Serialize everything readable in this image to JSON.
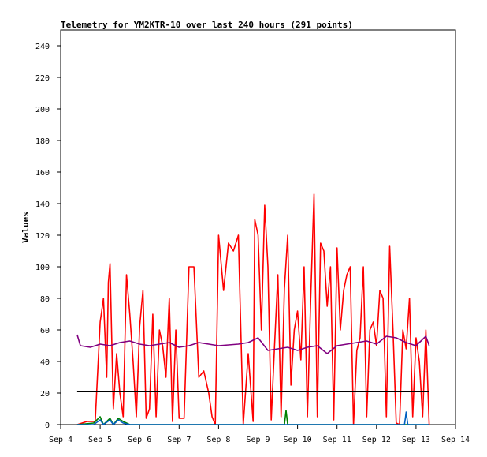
{
  "chart_data": {
    "type": "line",
    "title": "Telemetry for YM2KTR-10 over last 240 hours (291 points)",
    "xlabel": "",
    "ylabel": "Values",
    "ylim": [
      0,
      250
    ],
    "yticks": [
      0,
      20,
      40,
      60,
      80,
      100,
      120,
      140,
      160,
      180,
      200,
      220,
      240
    ],
    "xlim": [
      "Sep 4",
      "Sep 14"
    ],
    "xticks": [
      "Sep 4",
      "Sep 5",
      "Sep 6",
      "Sep 7",
      "Sep 8",
      "Sep 9",
      "Sep 10",
      "Sep 11",
      "Sep 12",
      "Sep 13",
      "Sep 14"
    ],
    "grid": false,
    "legend": "none",
    "series": [
      {
        "color": "#ff0000",
        "x": [
          "Sep 4 10:00",
          "Sep 4 16:00",
          "Sep 4 21:00",
          "Sep 5 00:00",
          "Sep 5 02:00",
          "Sep 5 04:00",
          "Sep 5 05:00",
          "Sep 5 06:00",
          "Sep 5 08:00",
          "Sep 5 10:00",
          "Sep 5 12:00",
          "Sep 5 14:00",
          "Sep 5 16:00",
          "Sep 5 18:00",
          "Sep 5 20:00",
          "Sep 5 22:00",
          "Sep 6 00:00",
          "Sep 6 02:00",
          "Sep 6 04:00",
          "Sep 6 06:00",
          "Sep 6 08:00",
          "Sep 6 10:00",
          "Sep 6 12:00",
          "Sep 6 14:00",
          "Sep 6 16:00",
          "Sep 6 18:00",
          "Sep 6 20:00",
          "Sep 6 22:00",
          "Sep 7 00:00",
          "Sep 7 03:00",
          "Sep 7 06:00",
          "Sep 7 09:00",
          "Sep 7 12:00",
          "Sep 7 15:00",
          "Sep 7 18:00",
          "Sep 7 20:00",
          "Sep 7 22:00",
          "Sep 8 00:00",
          "Sep 8 03:00",
          "Sep 8 06:00",
          "Sep 8 09:00",
          "Sep 8 12:00",
          "Sep 8 15:00",
          "Sep 8 18:00",
          "Sep 8 21:00",
          "Sep 8 22:00",
          "Sep 9 00:00",
          "Sep 9 02:00",
          "Sep 9 04:00",
          "Sep 9 06:00",
          "Sep 9 08:00",
          "Sep 9 10:00",
          "Sep 9 12:00",
          "Sep 9 14:00",
          "Sep 9 16:00",
          "Sep 9 18:00",
          "Sep 9 20:00",
          "Sep 9 22:00",
          "Sep 10 00:00",
          "Sep 10 02:00",
          "Sep 10 04:00",
          "Sep 10 06:00",
          "Sep 10 08:00",
          "Sep 10 10:00",
          "Sep 10 12:00",
          "Sep 10 14:00",
          "Sep 10 16:00",
          "Sep 10 18:00",
          "Sep 10 20:00",
          "Sep 10 22:00",
          "Sep 11 00:00",
          "Sep 11 02:00",
          "Sep 11 04:00",
          "Sep 11 06:00",
          "Sep 11 08:00",
          "Sep 11 10:00",
          "Sep 11 12:00",
          "Sep 11 14:00",
          "Sep 11 16:00",
          "Sep 11 18:00",
          "Sep 11 20:00",
          "Sep 11 22:00",
          "Sep 12 00:00",
          "Sep 12 02:00",
          "Sep 12 04:00",
          "Sep 12 06:00",
          "Sep 12 08:00",
          "Sep 12 10:00",
          "Sep 12 12:00",
          "Sep 12 14:00",
          "Sep 12 16:00",
          "Sep 12 18:00",
          "Sep 12 20:00",
          "Sep 12 22:00",
          "Sep 13 00:00",
          "Sep 13 02:00",
          "Sep 13 04:00",
          "Sep 13 06:00",
          "Sep 13 08:00"
        ],
        "y": [
          0,
          2,
          2,
          65,
          80,
          30,
          90,
          102,
          10,
          45,
          20,
          5,
          95,
          70,
          40,
          5,
          62,
          85,
          4,
          10,
          70,
          5,
          60,
          50,
          30,
          80,
          2,
          60,
          4,
          4,
          100,
          100,
          30,
          34,
          20,
          5,
          0,
          120,
          85,
          115,
          110,
          120,
          0,
          45,
          2,
          130,
          120,
          60,
          139,
          100,
          3,
          50,
          95,
          5,
          86,
          120,
          25,
          60,
          72,
          41,
          100,
          5,
          80,
          146,
          5,
          115,
          110,
          75,
          100,
          3,
          112,
          60,
          85,
          95,
          100,
          0,
          47,
          55,
          100,
          5,
          60,
          65,
          50,
          85,
          80,
          5,
          113,
          60,
          1,
          0,
          60,
          48,
          80,
          5,
          55,
          40,
          5,
          60,
          0
        ]
      },
      {
        "color": "#800080",
        "x": [
          "Sep 4 10:00",
          "Sep 4 12:00",
          "Sep 4 18:00",
          "Sep 5 00:00",
          "Sep 5 06:00",
          "Sep 5 12:00",
          "Sep 5 18:00",
          "Sep 6 00:00",
          "Sep 6 06:00",
          "Sep 6 12:00",
          "Sep 6 18:00",
          "Sep 7 00:00",
          "Sep 7 06:00",
          "Sep 7 12:00",
          "Sep 7 18:00",
          "Sep 8 00:00",
          "Sep 8 12:00",
          "Sep 8 18:00",
          "Sep 9 00:00",
          "Sep 9 06:00",
          "Sep 9 12:00",
          "Sep 9 18:00",
          "Sep 10 00:00",
          "Sep 10 06:00",
          "Sep 10 12:00",
          "Sep 10 18:00",
          "Sep 11 00:00",
          "Sep 11 06:00",
          "Sep 11 12:00",
          "Sep 11 18:00",
          "Sep 12 00:00",
          "Sep 12 06:00",
          "Sep 12 12:00",
          "Sep 12 18:00",
          "Sep 13 00:00",
          "Sep 13 06:00",
          "Sep 13 08:00"
        ],
        "y": [
          57,
          50,
          49,
          51,
          50,
          52,
          53,
          51,
          50,
          51,
          52,
          49,
          50,
          52,
          51,
          50,
          51,
          52,
          55,
          47,
          48,
          49,
          47,
          49,
          50,
          45,
          50,
          51,
          52,
          53,
          51,
          56,
          55,
          52,
          50,
          56,
          50
        ]
      },
      {
        "color": "#000000",
        "x": [
          "Sep 4 10:00",
          "Sep 13 08:00"
        ],
        "y": [
          21,
          21
        ]
      },
      {
        "color": "#008000",
        "x": [
          "Sep 4 10:00",
          "Sep 4 20:00",
          "Sep 5 00:00",
          "Sep 5 02:00",
          "Sep 5 06:00",
          "Sep 5 08:00",
          "Sep 5 11:00",
          "Sep 5 14:00",
          "Sep 5 18:00",
          "Sep 6 00:00",
          "Sep 9 16:00",
          "Sep 9 17:00",
          "Sep 9 18:00",
          "Sep 13 08:00"
        ],
        "y": [
          0,
          1,
          5,
          0,
          4,
          0,
          4,
          2,
          0,
          0,
          0,
          9,
          0,
          0
        ]
      },
      {
        "color": "#0060c0",
        "x": [
          "Sep 4 10:00",
          "Sep 4 20:00",
          "Sep 5 00:00",
          "Sep 5 02:00",
          "Sep 5 06:00",
          "Sep 5 08:00",
          "Sep 5 11:00",
          "Sep 5 14:00",
          "Sep 5 18:00",
          "Sep 6 00:00",
          "Sep 12 17:00",
          "Sep 12 18:00",
          "Sep 12 19:00",
          "Sep 13 08:00"
        ],
        "y": [
          0,
          0,
          3,
          0,
          3,
          0,
          3,
          1,
          0,
          0,
          0,
          8,
          0,
          0
        ]
      }
    ]
  }
}
